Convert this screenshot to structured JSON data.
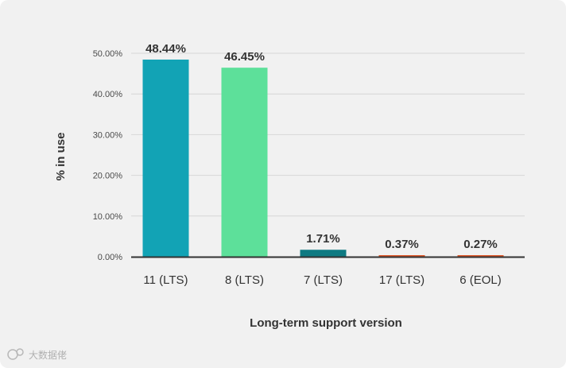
{
  "chart_data": {
    "type": "bar",
    "categories": [
      "11 (LTS)",
      "8 (LTS)",
      "7 (LTS)",
      "17 (LTS)",
      "6 (EOL)"
    ],
    "values": [
      48.44,
      46.45,
      1.71,
      0.37,
      0.27
    ],
    "value_labels": [
      "48.44%",
      "46.45%",
      "1.71%",
      "0.37%",
      "0.27%"
    ],
    "bar_colors": [
      "#12a3b5",
      "#5de09a",
      "#0e7a82",
      "#e05a2b",
      "#e05a2b"
    ],
    "xlabel": "Long-term support version",
    "ylabel": "% in use",
    "ylim": [
      0,
      50
    ],
    "yticks": [
      0,
      10,
      20,
      30,
      40,
      50
    ],
    "ytick_labels": [
      "0.00%",
      "10.00%",
      "20.00%",
      "30.00%",
      "40.00%",
      "50.00%"
    ],
    "grid": true,
    "legend": "none"
  },
  "watermark": {
    "icon": "cloud-logo-icon",
    "text": "大数据佬"
  }
}
